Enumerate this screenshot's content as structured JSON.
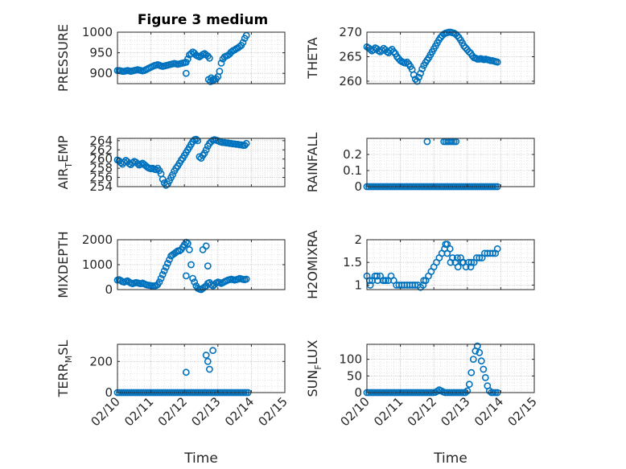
{
  "figure_title": "Figure 3 medium",
  "x_tick_labels": [
    "02/10",
    "02/11",
    "02/12",
    "02/13",
    "02/14",
    "02/15"
  ],
  "marker_color": "#0072BD",
  "chart_data": [
    {
      "type": "scatter",
      "title": "Figure 3 medium",
      "ylabel": "PRESSURE",
      "xlabel": "",
      "xlim": [
        0,
        5
      ],
      "ylim": [
        875,
        1000
      ],
      "yticks": [
        900,
        950,
        1000
      ],
      "grid": true,
      "x": [
        0.0,
        0.05,
        0.1,
        0.15,
        0.2,
        0.25,
        0.3,
        0.35,
        0.4,
        0.45,
        0.5,
        0.55,
        0.6,
        0.65,
        0.7,
        0.75,
        0.8,
        0.85,
        0.9,
        0.95,
        1.0,
        1.05,
        1.1,
        1.15,
        1.2,
        1.25,
        1.3,
        1.35,
        1.4,
        1.45,
        1.5,
        1.55,
        1.6,
        1.65,
        1.7,
        1.75,
        1.8,
        1.85,
        1.9,
        1.95,
        2.0,
        2.05,
        2.1,
        2.15,
        2.2,
        2.25,
        2.3,
        2.35,
        2.4,
        2.45,
        2.5,
        2.55,
        2.6,
        2.65,
        2.7,
        2.75,
        2.8,
        2.85,
        2.9,
        2.95,
        3.0,
        3.05,
        3.1,
        3.15,
        3.2,
        3.25,
        3.3,
        3.35,
        3.4,
        3.45,
        3.5,
        3.55,
        3.6,
        3.65,
        3.7,
        3.75,
        3.8,
        3.85,
        2.05,
        2.72,
        2.78,
        2.85
      ],
      "y": [
        907,
        907,
        906,
        905,
        905,
        906,
        907,
        906,
        905,
        906,
        907,
        908,
        909,
        908,
        907,
        906,
        907,
        909,
        911,
        913,
        915,
        917,
        919,
        920,
        921,
        920,
        918,
        917,
        918,
        919,
        920,
        921,
        922,
        923,
        924,
        923,
        922,
        923,
        924,
        925,
        926,
        927,
        935,
        945,
        948,
        952,
        949,
        944,
        942,
        940,
        943,
        946,
        948,
        945,
        942,
        937,
        889,
        885,
        885,
        887,
        892,
        905,
        925,
        935,
        940,
        942,
        944,
        947,
        952,
        955,
        957,
        960,
        962,
        965,
        968,
        975,
        985,
        992,
        900,
        885,
        880,
        882
      ]
    },
    {
      "type": "scatter",
      "ylabel": "THETA",
      "xlabel": "",
      "xlim": [
        0,
        5
      ],
      "ylim": [
        259.5,
        270
      ],
      "yticks": [
        260,
        265,
        270
      ],
      "grid": true,
      "x": [
        0.0,
        0.05,
        0.1,
        0.15,
        0.2,
        0.25,
        0.3,
        0.35,
        0.4,
        0.45,
        0.5,
        0.55,
        0.6,
        0.65,
        0.7,
        0.75,
        0.8,
        0.85,
        0.9,
        0.95,
        1.0,
        1.05,
        1.1,
        1.15,
        1.2,
        1.25,
        1.3,
        1.35,
        1.4,
        1.45,
        1.5,
        1.55,
        1.6,
        1.65,
        1.7,
        1.75,
        1.8,
        1.85,
        1.9,
        1.95,
        2.0,
        2.05,
        2.1,
        2.15,
        2.2,
        2.25,
        2.3,
        2.35,
        2.4,
        2.45,
        2.5,
        2.55,
        2.6,
        2.65,
        2.7,
        2.75,
        2.8,
        2.85,
        2.9,
        2.95,
        3.0,
        3.05,
        3.1,
        3.15,
        3.2,
        3.25,
        3.3,
        3.35,
        3.4,
        3.45,
        3.5,
        3.55,
        3.6,
        3.65,
        3.7,
        3.75,
        3.8,
        3.85,
        3.9
      ],
      "y": [
        267.0,
        266.8,
        266.5,
        266.2,
        266.4,
        266.8,
        266.6,
        266.2,
        266.0,
        266.3,
        266.7,
        266.4,
        266.0,
        265.8,
        266.2,
        266.5,
        266.0,
        265.6,
        265.0,
        264.6,
        264.2,
        264.0,
        263.8,
        263.7,
        263.9,
        263.5,
        263.0,
        262.4,
        261.3,
        260.4,
        260.0,
        260.8,
        261.6,
        262.5,
        263.2,
        263.8,
        264.3,
        264.8,
        265.4,
        266.0,
        266.6,
        267.2,
        267.8,
        268.4,
        268.9,
        269.3,
        269.6,
        269.8,
        269.9,
        270.0,
        270.0,
        269.9,
        269.8,
        269.6,
        269.3,
        268.9,
        268.4,
        267.8,
        267.2,
        266.8,
        266.4,
        266.0,
        265.7,
        265.2,
        264.8,
        264.7,
        264.5,
        264.5,
        264.6,
        264.5,
        264.4,
        264.5,
        264.4,
        264.3,
        264.2,
        264.2,
        264.1,
        264.0,
        263.9
      ]
    },
    {
      "type": "scatter",
      "ylabel": "AIR_TEMP",
      "xlabel": "",
      "xlim": [
        0,
        5
      ],
      "ylim": [
        254,
        264.5
      ],
      "yticks": [
        254,
        256,
        258,
        260,
        262,
        264
      ],
      "grid": true,
      "x": [
        0.0,
        0.05,
        0.1,
        0.15,
        0.2,
        0.25,
        0.3,
        0.35,
        0.4,
        0.45,
        0.5,
        0.55,
        0.6,
        0.65,
        0.7,
        0.75,
        0.8,
        0.85,
        0.9,
        0.95,
        1.0,
        1.05,
        1.1,
        1.15,
        1.2,
        1.25,
        1.3,
        1.35,
        1.4,
        1.45,
        1.5,
        1.55,
        1.6,
        1.65,
        1.7,
        1.75,
        1.8,
        1.85,
        1.9,
        1.95,
        2.0,
        2.05,
        2.1,
        2.15,
        2.2,
        2.25,
        2.3,
        2.35,
        2.4,
        2.45,
        2.5,
        2.55,
        2.6,
        2.65,
        2.7,
        2.75,
        2.8,
        2.85,
        2.9,
        2.95,
        3.0,
        3.05,
        3.1,
        3.15,
        3.2,
        3.25,
        3.3,
        3.35,
        3.4,
        3.45,
        3.5,
        3.55,
        3.6,
        3.65,
        3.7,
        3.75,
        3.8,
        3.85
      ],
      "y": [
        259.8,
        259.6,
        259.2,
        258.9,
        259.3,
        259.7,
        259.4,
        259.0,
        258.8,
        259.2,
        259.5,
        259.3,
        259.0,
        258.7,
        258.9,
        259.1,
        258.8,
        258.5,
        258.2,
        258.0,
        257.9,
        258.0,
        257.8,
        257.7,
        258.0,
        257.5,
        256.8,
        255.6,
        254.8,
        254.3,
        254.6,
        255.3,
        256.0,
        256.6,
        257.4,
        258.0,
        258.5,
        259.1,
        259.7,
        260.2,
        260.8,
        261.4,
        262.0,
        262.6,
        263.2,
        263.8,
        264.2,
        264.3,
        264.0,
        260.5,
        260.2,
        260.8,
        261.3,
        262.0,
        262.8,
        263.4,
        263.8,
        264.1,
        264.2,
        264.1,
        264.0,
        263.8,
        263.7,
        263.6,
        263.6,
        263.5,
        263.5,
        263.4,
        263.4,
        263.3,
        263.3,
        263.2,
        263.2,
        263.1,
        263.1,
        263.0,
        263.0,
        263.4
      ]
    },
    {
      "type": "scatter",
      "ylabel": "RAINFALL",
      "xlabel": "",
      "xlim": [
        0,
        5
      ],
      "ylim": [
        0,
        0.3
      ],
      "yticks": [
        0,
        0.1,
        0.2
      ],
      "grid": true,
      "x": [
        0.0,
        0.06,
        0.12,
        0.18,
        0.24,
        0.3,
        0.36,
        0.42,
        0.48,
        0.54,
        0.6,
        0.66,
        0.72,
        0.78,
        0.84,
        0.9,
        0.96,
        1.02,
        1.08,
        1.14,
        1.2,
        1.26,
        1.32,
        1.38,
        1.44,
        1.5,
        1.56,
        1.62,
        1.68,
        1.74,
        1.8,
        1.86,
        1.92,
        1.98,
        2.04,
        2.1,
        2.16,
        2.22,
        2.28,
        2.34,
        2.4,
        2.46,
        2.52,
        2.58,
        2.64,
        2.7,
        2.76,
        2.82,
        2.88,
        2.94,
        3.0,
        3.06,
        3.12,
        3.18,
        3.24,
        3.3,
        3.36,
        3.42,
        3.48,
        3.54,
        3.6,
        3.66,
        3.72,
        3.78,
        3.84,
        3.9,
        1.8,
        2.3,
        2.36,
        2.42,
        2.48,
        2.54,
        2.6,
        2.66
      ],
      "y": [
        0,
        0,
        0,
        0,
        0,
        0,
        0,
        0,
        0,
        0,
        0,
        0,
        0,
        0,
        0,
        0,
        0,
        0,
        0,
        0,
        0,
        0,
        0,
        0,
        0,
        0,
        0,
        0,
        0,
        0,
        0,
        0,
        0,
        0,
        0,
        0,
        0,
        0,
        0,
        0,
        0,
        0,
        0,
        0,
        0,
        0,
        0,
        0,
        0,
        0,
        0,
        0,
        0,
        0,
        0,
        0,
        0,
        0,
        0,
        0,
        0,
        0,
        0,
        0,
        0,
        0,
        0.28,
        0.28,
        0.28,
        0.28,
        0.28,
        0.28,
        0.28,
        0.28
      ]
    },
    {
      "type": "scatter",
      "ylabel": "MIXDEPTH",
      "xlabel": "",
      "xlim": [
        0,
        5
      ],
      "ylim": [
        0,
        2000
      ],
      "yticks": [
        0,
        1000,
        2000
      ],
      "grid": true,
      "x": [
        0.0,
        0.05,
        0.1,
        0.15,
        0.2,
        0.25,
        0.3,
        0.35,
        0.4,
        0.45,
        0.5,
        0.55,
        0.6,
        0.65,
        0.7,
        0.75,
        0.8,
        0.85,
        0.9,
        0.95,
        1.0,
        1.05,
        1.1,
        1.15,
        1.2,
        1.25,
        1.3,
        1.35,
        1.4,
        1.45,
        1.5,
        1.55,
        1.6,
        1.65,
        1.7,
        1.75,
        1.8,
        1.85,
        1.9,
        1.95,
        2.0,
        2.05,
        2.1,
        2.15,
        2.2,
        2.25,
        2.3,
        2.35,
        2.4,
        2.45,
        2.5,
        2.55,
        2.6,
        2.65,
        2.7,
        2.75,
        2.8,
        2.85,
        2.9,
        2.95,
        3.0,
        3.05,
        3.1,
        3.15,
        3.2,
        3.25,
        3.3,
        3.35,
        3.4,
        3.45,
        3.5,
        3.55,
        3.6,
        3.65,
        3.7,
        3.75,
        3.8,
        3.85,
        2.05,
        2.55,
        2.65,
        2.7
      ],
      "y": [
        380,
        400,
        360,
        320,
        300,
        330,
        350,
        300,
        260,
        240,
        260,
        280,
        270,
        250,
        240,
        260,
        230,
        200,
        180,
        170,
        160,
        150,
        150,
        160,
        200,
        300,
        450,
        600,
        750,
        900,
        1050,
        1200,
        1350,
        1400,
        1450,
        1500,
        1550,
        1550,
        1600,
        1700,
        1800,
        1900,
        1850,
        1600,
        1000,
        450,
        300,
        150,
        50,
        20,
        0,
        50,
        100,
        150,
        250,
        280,
        200,
        150,
        200,
        260,
        300,
        280,
        250,
        280,
        320,
        350,
        380,
        400,
        420,
        400,
        380,
        400,
        420,
        450,
        430,
        410,
        400,
        420,
        550,
        1600,
        1750,
        950
      ]
    },
    {
      "type": "scatter",
      "ylabel": "H2OMIXRA",
      "xlabel": "",
      "xlim": [
        0,
        5
      ],
      "ylim": [
        0.9,
        2
      ],
      "yticks": [
        1,
        1.5,
        2
      ],
      "grid": true,
      "x": [
        0.0,
        0.08,
        0.16,
        0.24,
        0.32,
        0.4,
        0.48,
        0.56,
        0.64,
        0.72,
        0.8,
        0.88,
        0.96,
        1.04,
        1.12,
        1.2,
        1.28,
        1.36,
        1.44,
        1.52,
        1.6,
        1.68,
        1.76,
        1.84,
        1.92,
        2.0,
        2.08,
        2.16,
        2.24,
        2.32,
        2.4,
        2.48,
        2.56,
        2.64,
        2.72,
        2.8,
        2.88,
        2.96,
        3.04,
        3.12,
        3.2,
        3.28,
        3.36,
        3.44,
        3.52,
        3.6,
        3.68,
        3.76,
        3.84,
        3.9,
        0.1,
        0.3,
        0.5,
        1.7,
        2.35,
        2.4,
        2.5,
        2.7,
        2.85,
        3.1
      ],
      "y": [
        1.2,
        1.1,
        1.1,
        1.2,
        1.1,
        1.2,
        1.1,
        1.1,
        1.1,
        1.2,
        1.1,
        1.0,
        1.0,
        1.0,
        1.0,
        1.0,
        1.0,
        1.0,
        1.0,
        1.0,
        0.95,
        1.0,
        1.1,
        1.2,
        1.3,
        1.4,
        1.5,
        1.6,
        1.7,
        1.8,
        1.9,
        1.8,
        1.6,
        1.5,
        1.4,
        1.6,
        1.5,
        1.4,
        1.5,
        1.5,
        1.5,
        1.6,
        1.6,
        1.6,
        1.7,
        1.7,
        1.7,
        1.7,
        1.7,
        1.8,
        1.0,
        1.2,
        1.1,
        1.1,
        1.9,
        1.7,
        1.5,
        1.6,
        1.5,
        1.4
      ]
    },
    {
      "type": "scatter",
      "ylabel": "TERR_MSL",
      "xlabel": "Time",
      "xlim": [
        0,
        5
      ],
      "ylim": [
        0,
        310
      ],
      "yticks": [
        0,
        200
      ],
      "grid": true,
      "x": [
        0.0,
        0.06,
        0.12,
        0.18,
        0.24,
        0.3,
        0.36,
        0.42,
        0.48,
        0.54,
        0.6,
        0.66,
        0.72,
        0.78,
        0.84,
        0.9,
        0.96,
        1.02,
        1.08,
        1.14,
        1.2,
        1.26,
        1.32,
        1.38,
        1.44,
        1.5,
        1.56,
        1.62,
        1.68,
        1.74,
        1.8,
        1.86,
        1.92,
        1.98,
        2.04,
        2.1,
        2.16,
        2.22,
        2.28,
        2.34,
        2.4,
        2.46,
        2.52,
        2.58,
        2.64,
        2.7,
        2.76,
        2.82,
        2.88,
        2.94,
        3.0,
        3.06,
        3.12,
        3.18,
        3.24,
        3.3,
        3.36,
        3.42,
        3.48,
        3.54,
        3.6,
        3.66,
        3.72,
        3.78,
        3.84,
        3.9,
        2.05,
        2.65,
        2.7,
        2.75,
        2.85
      ],
      "y": [
        0,
        0,
        0,
        0,
        0,
        0,
        0,
        0,
        0,
        0,
        0,
        0,
        0,
        0,
        0,
        0,
        0,
        0,
        0,
        0,
        0,
        0,
        0,
        0,
        0,
        0,
        0,
        0,
        0,
        0,
        0,
        0,
        0,
        0,
        0,
        0,
        0,
        0,
        0,
        0,
        0,
        0,
        0,
        0,
        0,
        0,
        0,
        0,
        0,
        0,
        0,
        0,
        0,
        0,
        0,
        0,
        0,
        0,
        0,
        0,
        0,
        0,
        0,
        0,
        0,
        0,
        130,
        240,
        200,
        150,
        270
      ]
    },
    {
      "type": "scatter",
      "ylabel": "SUN_FLUX",
      "xlabel": "Time",
      "xlim": [
        0,
        5
      ],
      "ylim": [
        0,
        145
      ],
      "yticks": [
        0,
        50,
        100
      ],
      "grid": true,
      "x": [
        0.0,
        0.06,
        0.12,
        0.18,
        0.24,
        0.3,
        0.36,
        0.42,
        0.48,
        0.54,
        0.6,
        0.66,
        0.72,
        0.78,
        0.84,
        0.9,
        0.96,
        1.02,
        1.08,
        1.14,
        1.2,
        1.26,
        1.32,
        1.38,
        1.44,
        1.5,
        1.56,
        1.62,
        1.68,
        1.74,
        1.8,
        1.86,
        1.92,
        1.98,
        2.04,
        2.1,
        2.16,
        2.22,
        2.28,
        2.34,
        2.4,
        2.46,
        2.52,
        2.58,
        2.64,
        2.7,
        2.76,
        2.82,
        2.88,
        2.94,
        3.0,
        3.06,
        3.12,
        3.18,
        3.24,
        3.3,
        3.36,
        3.42,
        3.48,
        3.54,
        3.6,
        3.66,
        3.72,
        3.78,
        3.84,
        3.9
      ],
      "y": [
        0,
        0,
        0,
        0,
        0,
        0,
        0,
        0,
        0,
        0,
        0,
        0,
        0,
        0,
        0,
        0,
        0,
        0,
        0,
        0,
        0,
        0,
        0,
        0,
        0,
        0,
        0,
        0,
        0,
        0,
        0,
        0,
        0,
        0,
        1,
        4,
        8,
        5,
        2,
        0,
        0,
        0,
        0,
        0,
        0,
        0,
        0,
        0,
        0,
        0,
        5,
        25,
        60,
        100,
        125,
        140,
        120,
        95,
        70,
        45,
        20,
        5,
        0,
        0,
        0,
        0
      ]
    }
  ]
}
